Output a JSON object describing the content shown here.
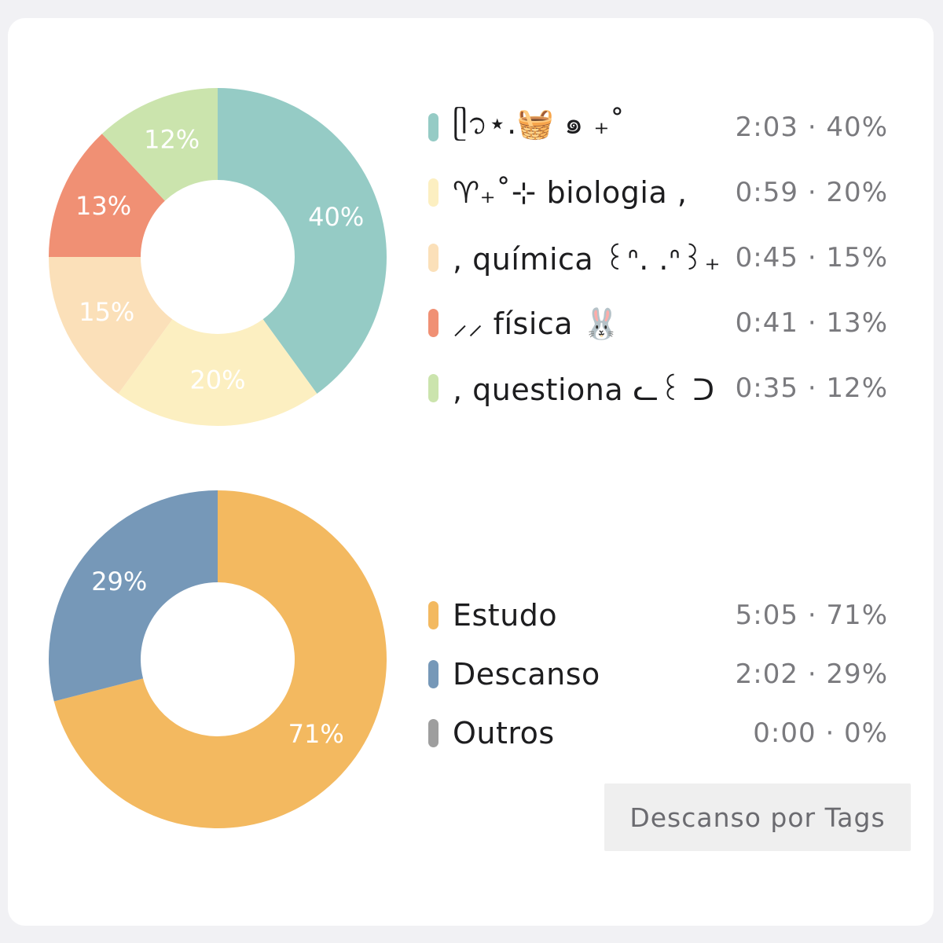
{
  "chart_data": [
    {
      "type": "pie",
      "title": "",
      "categories": [
        "ᥫ᭡⋆.🧺 ๑ ₊˚",
        "♈︎₊˚⊹ biologia ,",
        ", química ꒰ᐢ. .ᐢ꒱₊˚⊹",
        "⸝⸝ física 🐰",
        ", questiona ᓚ꒰ ᑐ ₊"
      ],
      "values": [
        40,
        20,
        15,
        13,
        12
      ],
      "durations": [
        "2:03",
        "0:59",
        "0:45",
        "0:41",
        "0:35"
      ],
      "slice_labels": [
        "40%",
        "20%",
        "15%",
        "13%",
        "12%"
      ],
      "colors": [
        "#95cbc5",
        "#fcefc1",
        "#fbe0b9",
        "#f09074",
        "#cbe4ad"
      ],
      "legend_values": [
        "2:03 · 40%",
        "0:59 · 20%",
        "0:45 · 15%",
        "0:41 · 13%",
        "0:35 · 12%"
      ],
      "legend_placement": "right",
      "donut": true
    },
    {
      "type": "pie",
      "title": "",
      "categories": [
        "Estudo",
        "Descanso",
        "Outros"
      ],
      "values": [
        71,
        29,
        0
      ],
      "durations": [
        "5:05",
        "2:02",
        "0:00"
      ],
      "slice_labels": [
        "71%",
        "29%",
        ""
      ],
      "colors": [
        "#f3b960",
        "#7698b8",
        "#9e9e9e"
      ],
      "legend_values": [
        "5:05 · 71%",
        "2:02 · 29%",
        "0:00 · 0%"
      ],
      "legend_placement": "right",
      "donut": true
    }
  ],
  "button": {
    "label": "Descanso por Tags"
  }
}
